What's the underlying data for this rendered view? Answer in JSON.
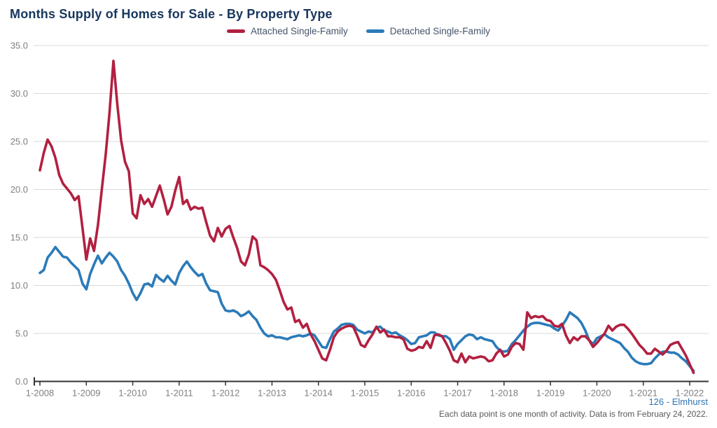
{
  "title": "Months Supply of Homes for Sale - By Property Type",
  "legend": [
    {
      "label": "Attached Single-Family",
      "color": "#B22040"
    },
    {
      "label": "Detached Single-Family",
      "color": "#2B7BB9"
    }
  ],
  "footer": {
    "source": "126 - Elmhurst",
    "note": "Each data point is one month of activity. Data is from February 24, 2022."
  },
  "colors": {
    "title": "#17375E",
    "legend_text": "#44546A",
    "axis_label": "#7F7F7F",
    "gridline": "#D8D8D8",
    "axis_line": "#333333",
    "attached_series": "#B22040",
    "detached_series": "#2B7BB9",
    "source_text": "#2E75B6",
    "note_text": "#595959"
  },
  "chart_data": {
    "type": "line",
    "title": "Months Supply of Homes for Sale - By Property Type",
    "frequency": "monthly",
    "first_point": "1-2008",
    "last_point": "2-2022",
    "x_tick_labels": [
      "1-2008",
      "1-2009",
      "1-2010",
      "1-2011",
      "1-2012",
      "1-2013",
      "1-2014",
      "1-2015",
      "1-2016",
      "1-2017",
      "1-2018",
      "1-2019",
      "1-2020",
      "1-2021",
      "1-2022"
    ],
    "y_ticks": [
      {
        "value": 0,
        "label": "0.0"
      },
      {
        "value": 5,
        "label": "5.0"
      },
      {
        "value": 10,
        "label": "10.0"
      },
      {
        "value": 15,
        "label": "15.0"
      },
      {
        "value": 20,
        "label": "20.0"
      },
      {
        "value": 25,
        "label": "25.0"
      },
      {
        "value": 30,
        "label": "30.0"
      },
      {
        "value": 35,
        "label": "35.0"
      }
    ],
    "ylim": [
      0,
      35
    ],
    "grid": true,
    "legend_position": "top-center",
    "series": [
      {
        "name": "Attached Single-Family",
        "color": "#B22040",
        "values": [
          22.0,
          23.8,
          25.2,
          24.5,
          23.3,
          21.5,
          20.6,
          20.1,
          19.6,
          18.9,
          19.3,
          16.0,
          12.7,
          14.9,
          13.6,
          16.3,
          20.0,
          23.6,
          28.0,
          33.4,
          28.9,
          25.1,
          22.9,
          21.9,
          17.5,
          17.0,
          19.4,
          18.5,
          19.0,
          18.2,
          19.3,
          20.4,
          19.0,
          17.4,
          18.2,
          19.9,
          21.3,
          18.5,
          18.9,
          17.9,
          18.2,
          18.0,
          18.1,
          16.6,
          15.2,
          14.6,
          16.0,
          15.1,
          15.9,
          16.2,
          15.0,
          13.9,
          12.5,
          12.1,
          13.2,
          15.1,
          14.7,
          12.1,
          11.9,
          11.6,
          11.2,
          10.6,
          9.5,
          8.3,
          7.5,
          7.7,
          6.2,
          6.4,
          5.6,
          6.0,
          4.9,
          4.2,
          3.3,
          2.4,
          2.2,
          3.3,
          4.6,
          5.2,
          5.5,
          5.7,
          5.8,
          5.7,
          4.8,
          3.8,
          3.6,
          4.3,
          4.9,
          5.7,
          5.1,
          5.4,
          4.7,
          4.7,
          4.6,
          4.6,
          4.4,
          3.4,
          3.2,
          3.3,
          3.6,
          3.5,
          4.2,
          3.5,
          4.8,
          4.9,
          4.7,
          4.0,
          3.2,
          2.2,
          2.0,
          2.9,
          2.0,
          2.6,
          2.4,
          2.5,
          2.6,
          2.5,
          2.1,
          2.2,
          2.9,
          3.3,
          2.6,
          2.8,
          3.6,
          4.0,
          3.9,
          3.3,
          7.2,
          6.6,
          6.8,
          6.7,
          6.8,
          6.4,
          6.3,
          5.8,
          5.7,
          6.0,
          4.8,
          4.0,
          4.6,
          4.3,
          4.7,
          4.7,
          4.3,
          3.6,
          4.0,
          4.5,
          5.0,
          5.8,
          5.3,
          5.7,
          5.9,
          5.9,
          5.5,
          5.0,
          4.4,
          3.8,
          3.4,
          2.9,
          2.9,
          3.4,
          3.1,
          2.8,
          3.2,
          3.8,
          4.0,
          4.1,
          3.4,
          2.7,
          1.8,
          0.9
        ]
      },
      {
        "name": "Detached Single-Family",
        "color": "#2B7BB9",
        "values": [
          11.3,
          11.6,
          12.9,
          13.4,
          14.0,
          13.5,
          13.0,
          12.9,
          12.4,
          12.0,
          11.6,
          10.2,
          9.6,
          11.2,
          12.2,
          13.1,
          12.3,
          12.9,
          13.4,
          13.0,
          12.5,
          11.6,
          11.0,
          10.2,
          9.2,
          8.5,
          9.2,
          10.1,
          10.2,
          9.9,
          11.1,
          10.7,
          10.4,
          11.0,
          10.5,
          10.1,
          11.3,
          12.0,
          12.5,
          11.9,
          11.4,
          11.0,
          11.2,
          10.2,
          9.5,
          9.4,
          9.3,
          8.1,
          7.4,
          7.3,
          7.4,
          7.2,
          6.8,
          7.0,
          7.3,
          6.8,
          6.4,
          5.6,
          5.0,
          4.7,
          4.8,
          4.6,
          4.6,
          4.5,
          4.4,
          4.6,
          4.7,
          4.8,
          4.7,
          4.8,
          5.0,
          4.8,
          4.2,
          3.6,
          3.5,
          4.4,
          5.2,
          5.5,
          5.9,
          6.0,
          6.0,
          5.9,
          5.4,
          5.2,
          5.0,
          5.2,
          5.1,
          5.6,
          5.7,
          5.3,
          5.2,
          5.0,
          5.1,
          4.8,
          4.6,
          4.3,
          3.9,
          4.0,
          4.6,
          4.7,
          4.8,
          5.1,
          5.1,
          4.8,
          4.7,
          4.7,
          4.4,
          3.3,
          3.9,
          4.3,
          4.7,
          4.9,
          4.8,
          4.4,
          4.6,
          4.4,
          4.3,
          4.2,
          3.6,
          3.2,
          3.1,
          3.2,
          3.9,
          4.3,
          4.8,
          5.3,
          5.7,
          6.0,
          6.1,
          6.1,
          6.0,
          5.9,
          5.8,
          5.5,
          5.3,
          5.8,
          6.4,
          7.2,
          6.9,
          6.6,
          6.1,
          5.3,
          4.3,
          3.9,
          4.5,
          4.7,
          4.9,
          4.6,
          4.4,
          4.2,
          4.0,
          3.5,
          3.1,
          2.5,
          2.1,
          1.9,
          1.8,
          1.8,
          1.9,
          2.4,
          2.8,
          3.1,
          3.1,
          3.0,
          3.0,
          2.8,
          2.4,
          2.1,
          1.6,
          1.1
        ]
      }
    ]
  }
}
